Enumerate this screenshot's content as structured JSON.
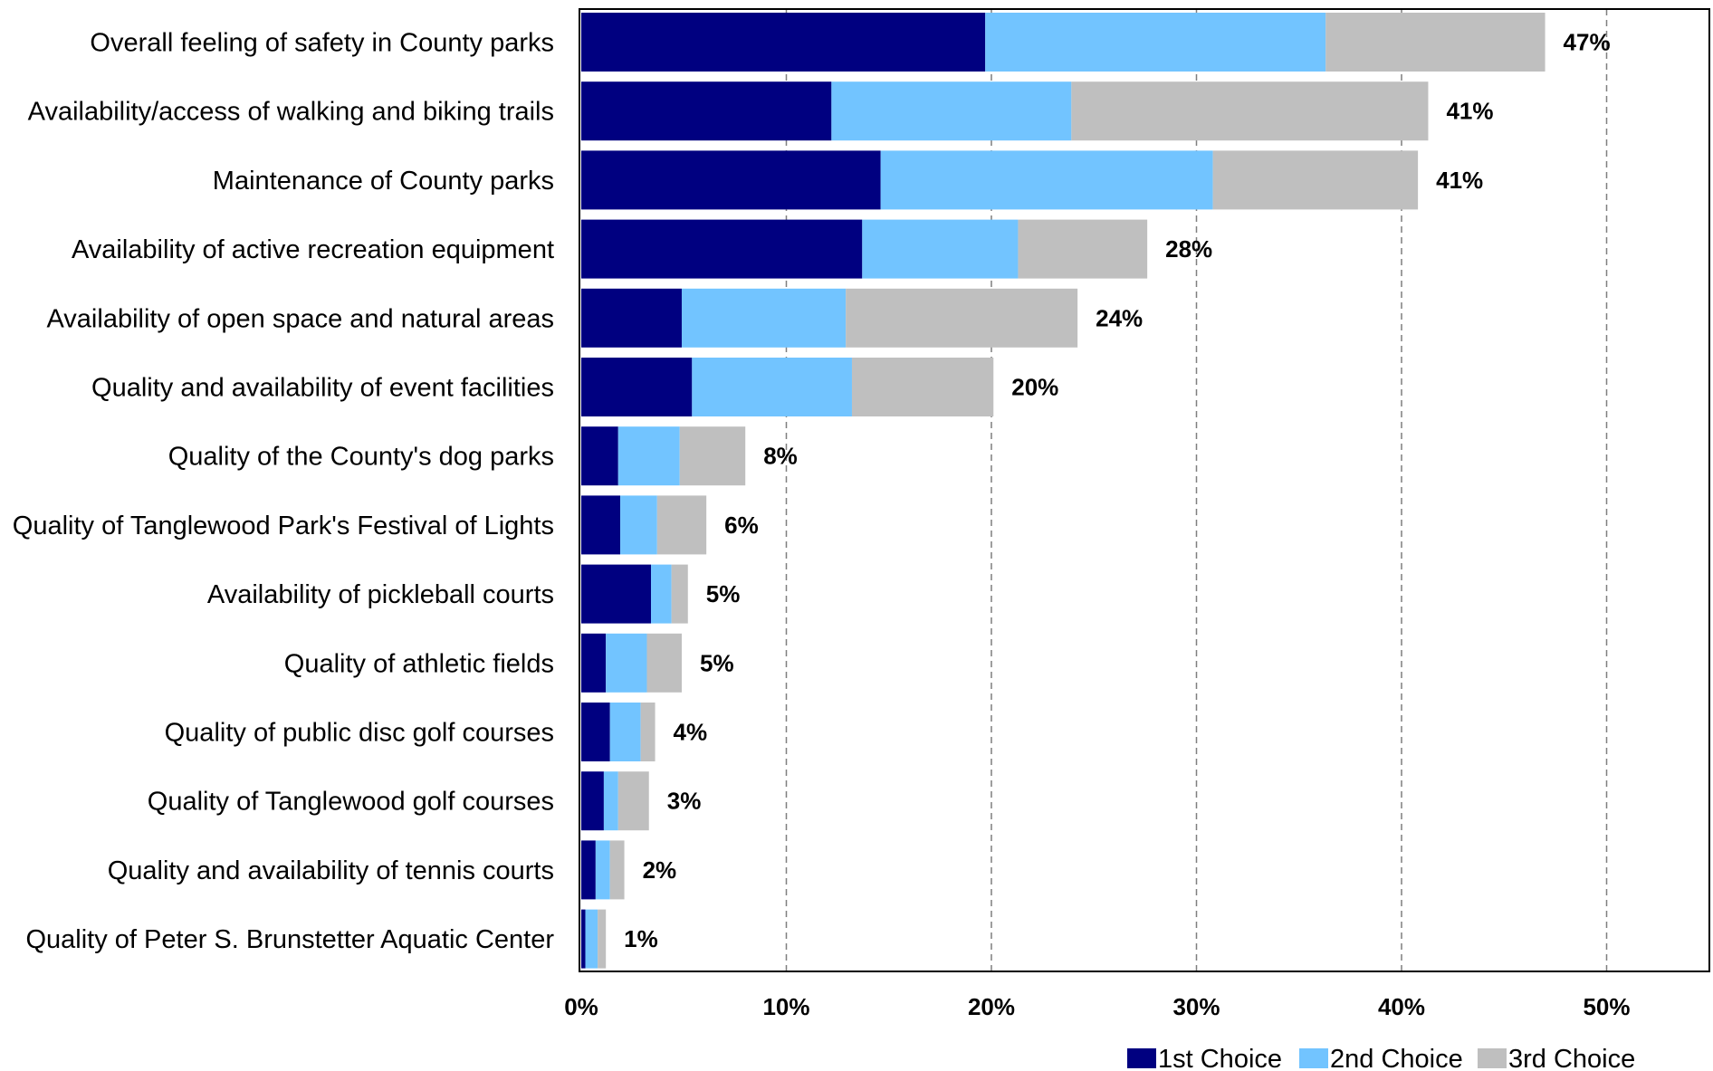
{
  "chart_data": {
    "type": "bar",
    "orientation": "horizontal",
    "stacked": true,
    "title": "",
    "xlabel": "",
    "ylabel": "",
    "xlim": [
      0,
      55
    ],
    "x_ticks": [
      "0%",
      "10%",
      "20%",
      "30%",
      "40%",
      "50%"
    ],
    "grid": "vertical dashed",
    "legend_position": "bottom-right",
    "colors": [
      "#000080",
      "#72C4FF",
      "#BFBFBF"
    ],
    "categories": [
      "Overall feeling of safety in County parks",
      "Availability/access of walking and biking trails",
      "Maintenance of County parks",
      "Availability of active recreation equipment",
      "Availability of open space and natural areas",
      "Quality and availability of event facilities",
      "Quality of the County's dog parks",
      "Quality of Tanglewood Park's Festival of Lights",
      "Availability of pickleball courts",
      "Quality of athletic fields",
      "Quality of public disc golf courses",
      "Quality of Tanglewood golf courses",
      "Quality and availability of tennis courts",
      "Quality of Peter S. Brunstetter Aquatic Center"
    ],
    "series": [
      {
        "name": "1st Choice",
        "values": [
          19.7,
          12.2,
          14.6,
          13.7,
          4.9,
          5.4,
          1.8,
          1.9,
          3.4,
          1.2,
          1.4,
          1.1,
          0.7,
          0.2
        ]
      },
      {
        "name": "2nd Choice",
        "values": [
          16.6,
          11.7,
          16.2,
          7.6,
          8.0,
          7.8,
          3.0,
          1.8,
          1.0,
          2.0,
          1.5,
          0.7,
          0.7,
          0.6
        ]
      },
      {
        "name": "3rd Choice",
        "values": [
          10.7,
          17.4,
          10.0,
          6.3,
          11.3,
          6.9,
          3.2,
          2.4,
          0.8,
          1.7,
          0.7,
          1.5,
          0.7,
          0.4
        ]
      }
    ],
    "totals_labels": [
      "47%",
      "41%",
      "41%",
      "28%",
      "24%",
      "20%",
      "8%",
      "6%",
      "5%",
      "5%",
      "4%",
      "3%",
      "2%",
      "1%"
    ]
  }
}
